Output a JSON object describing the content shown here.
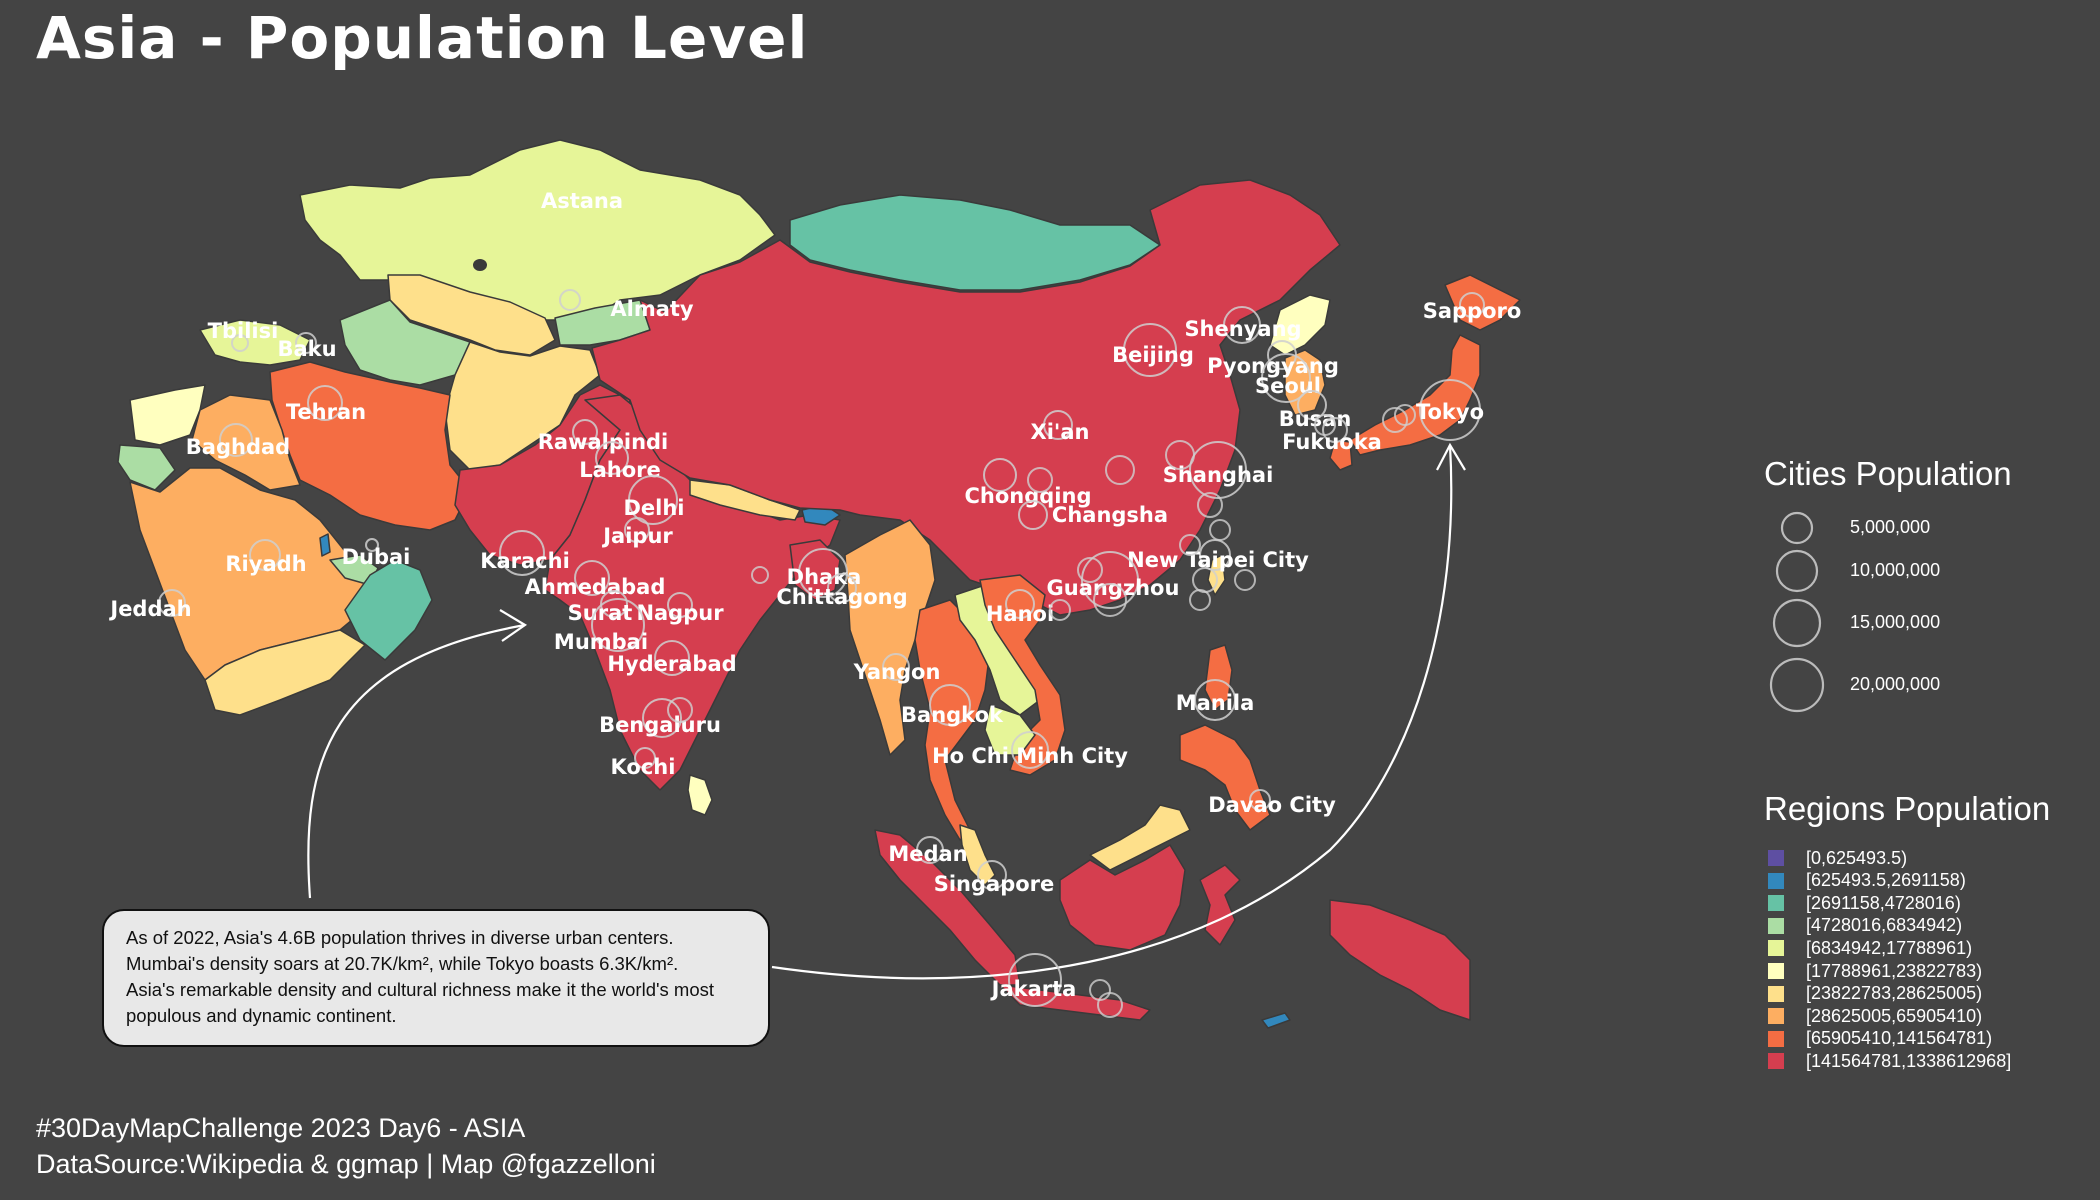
{
  "title": "Asia - Population Level",
  "caption_lines": [
    "#30DayMapChallenge 2023 Day6 - ASIA",
    "DataSource:Wikipedia & ggmap | Map @fgazzelloni"
  ],
  "note_lines": [
    "As of 2022, Asia's 4.6B population thrives in diverse urban centers.",
    "Mumbai's density soars at 20.7K/km², while Tokyo boasts 6.3K/km².",
    "Asia's remarkable density and cultural richness make it the world's most",
    "populous and dynamic continent."
  ],
  "cities_legend": {
    "title": "Cities Population",
    "sizes": [
      {
        "label": "5,000,000",
        "pop": 5000000
      },
      {
        "label": "10,000,000",
        "pop": 10000000
      },
      {
        "label": "15,000,000",
        "pop": 15000000
      },
      {
        "label": "20,000,000",
        "pop": 20000000
      }
    ]
  },
  "regions_legend": {
    "title": "Regions Population",
    "bins": [
      {
        "label": "[0,625493.5)",
        "color": "#5e4fa2"
      },
      {
        "label": "[625493.5,2691158)",
        "color": "#3288bd"
      },
      {
        "label": "[2691158,4728016)",
        "color": "#66c2a5"
      },
      {
        "label": "[4728016,6834942)",
        "color": "#abdda4"
      },
      {
        "label": "[6834942,17788961)",
        "color": "#e6f598"
      },
      {
        "label": "[17788961,23822783)",
        "color": "#ffffbf"
      },
      {
        "label": "[23822783,28625005)",
        "color": "#fee08b"
      },
      {
        "label": "[28625005,65905410)",
        "color": "#fdae61"
      },
      {
        "label": "[65905410,141564781)",
        "color": "#f46d43"
      },
      {
        "label": "[141564781,1338612968]",
        "color": "#d53e4f"
      }
    ]
  },
  "cities": [
    {
      "name": "Astana"
    },
    {
      "name": "Almaty"
    },
    {
      "name": "Tbilisi"
    },
    {
      "name": "Baku"
    },
    {
      "name": "Tehran"
    },
    {
      "name": "Baghdad"
    },
    {
      "name": "Riyadh"
    },
    {
      "name": "Dubai"
    },
    {
      "name": "Jeddah"
    },
    {
      "name": "Rawalpindi"
    },
    {
      "name": "Lahore"
    },
    {
      "name": "Delhi"
    },
    {
      "name": "Jaipur"
    },
    {
      "name": "Karachi"
    },
    {
      "name": "Ahmedabad"
    },
    {
      "name": "Surat"
    },
    {
      "name": "Nagpur"
    },
    {
      "name": "Mumbai"
    },
    {
      "name": "Hyderabad"
    },
    {
      "name": "Bengaluru"
    },
    {
      "name": "Kochi"
    },
    {
      "name": "Dhaka"
    },
    {
      "name": "Chittagong"
    },
    {
      "name": "Yangon"
    },
    {
      "name": "Bangkok"
    },
    {
      "name": "Ho Chi Minh City"
    },
    {
      "name": "Hanoi"
    },
    {
      "name": "Chongqing"
    },
    {
      "name": "Changsha"
    },
    {
      "name": "Xi'an"
    },
    {
      "name": "Beijing"
    },
    {
      "name": "Shenyang"
    },
    {
      "name": "Pyongyang"
    },
    {
      "name": "Seoul"
    },
    {
      "name": "Busan"
    },
    {
      "name": "Fukuoka"
    },
    {
      "name": "Tokyo"
    },
    {
      "name": "Sapporo"
    },
    {
      "name": "Shanghai"
    },
    {
      "name": "New Taipei City"
    },
    {
      "name": "Guangzhou"
    },
    {
      "name": "Manila"
    },
    {
      "name": "Davao City"
    },
    {
      "name": "Medan"
    },
    {
      "name": "Singapore"
    },
    {
      "name": "Jakarta"
    }
  ]
}
